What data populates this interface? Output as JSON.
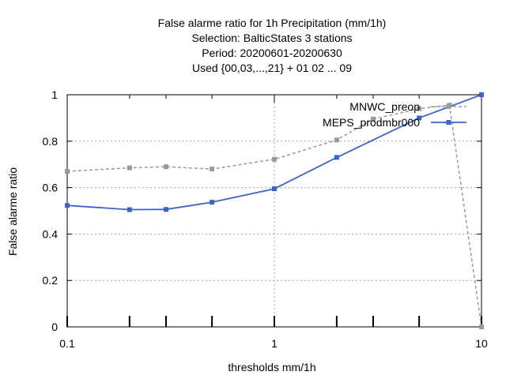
{
  "chart_data": {
    "type": "line",
    "title_lines": [
      "False alarme ratio  for 1h Precipitation (mm/1h)",
      "Selection: BalticStates      3 stations",
      "Period: 20200601-20200630",
      "Used {00,03,...,21} + 01 02 ... 09"
    ],
    "xlabel": "thresholds mm/1h",
    "ylabel": "False alarme ratio",
    "x_scale": "log",
    "xlim": [
      0.1,
      10
    ],
    "ylim": [
      0,
      1
    ],
    "x_ticks": [
      {
        "value": 0.1,
        "label": "0.1"
      },
      {
        "value": 1,
        "label": "1"
      },
      {
        "value": 10,
        "label": "10"
      }
    ],
    "y_ticks": [
      {
        "value": 0,
        "label": "0"
      },
      {
        "value": 0.2,
        "label": "0.2"
      },
      {
        "value": 0.4,
        "label": "0.4"
      },
      {
        "value": 0.6,
        "label": "0.6"
      },
      {
        "value": 0.8,
        "label": "0.8"
      },
      {
        "value": 1,
        "label": "1"
      }
    ],
    "x_minor_ticks": [
      0.2,
      0.3,
      0.5,
      2,
      3,
      5
    ],
    "grid": true,
    "legend_position": "top-right",
    "series": [
      {
        "name": "MNWC_preop",
        "color": "#999999",
        "line_style": "dashed",
        "x": [
          0.1,
          0.2,
          0.3,
          0.5,
          1,
          2,
          3,
          5,
          7,
          10
        ],
        "y": [
          0.67,
          0.685,
          0.69,
          0.68,
          0.722,
          0.805,
          0.895,
          0.94,
          0.955,
          0.0
        ]
      },
      {
        "name": "MEPS_prodmbr000",
        "color": "#3c64c8",
        "line_style": "solid",
        "x": [
          0.1,
          0.2,
          0.3,
          0.5,
          1,
          2,
          5,
          10
        ],
        "y": [
          0.523,
          0.505,
          0.506,
          0.537,
          0.595,
          0.73,
          0.9,
          1.0
        ]
      }
    ]
  }
}
